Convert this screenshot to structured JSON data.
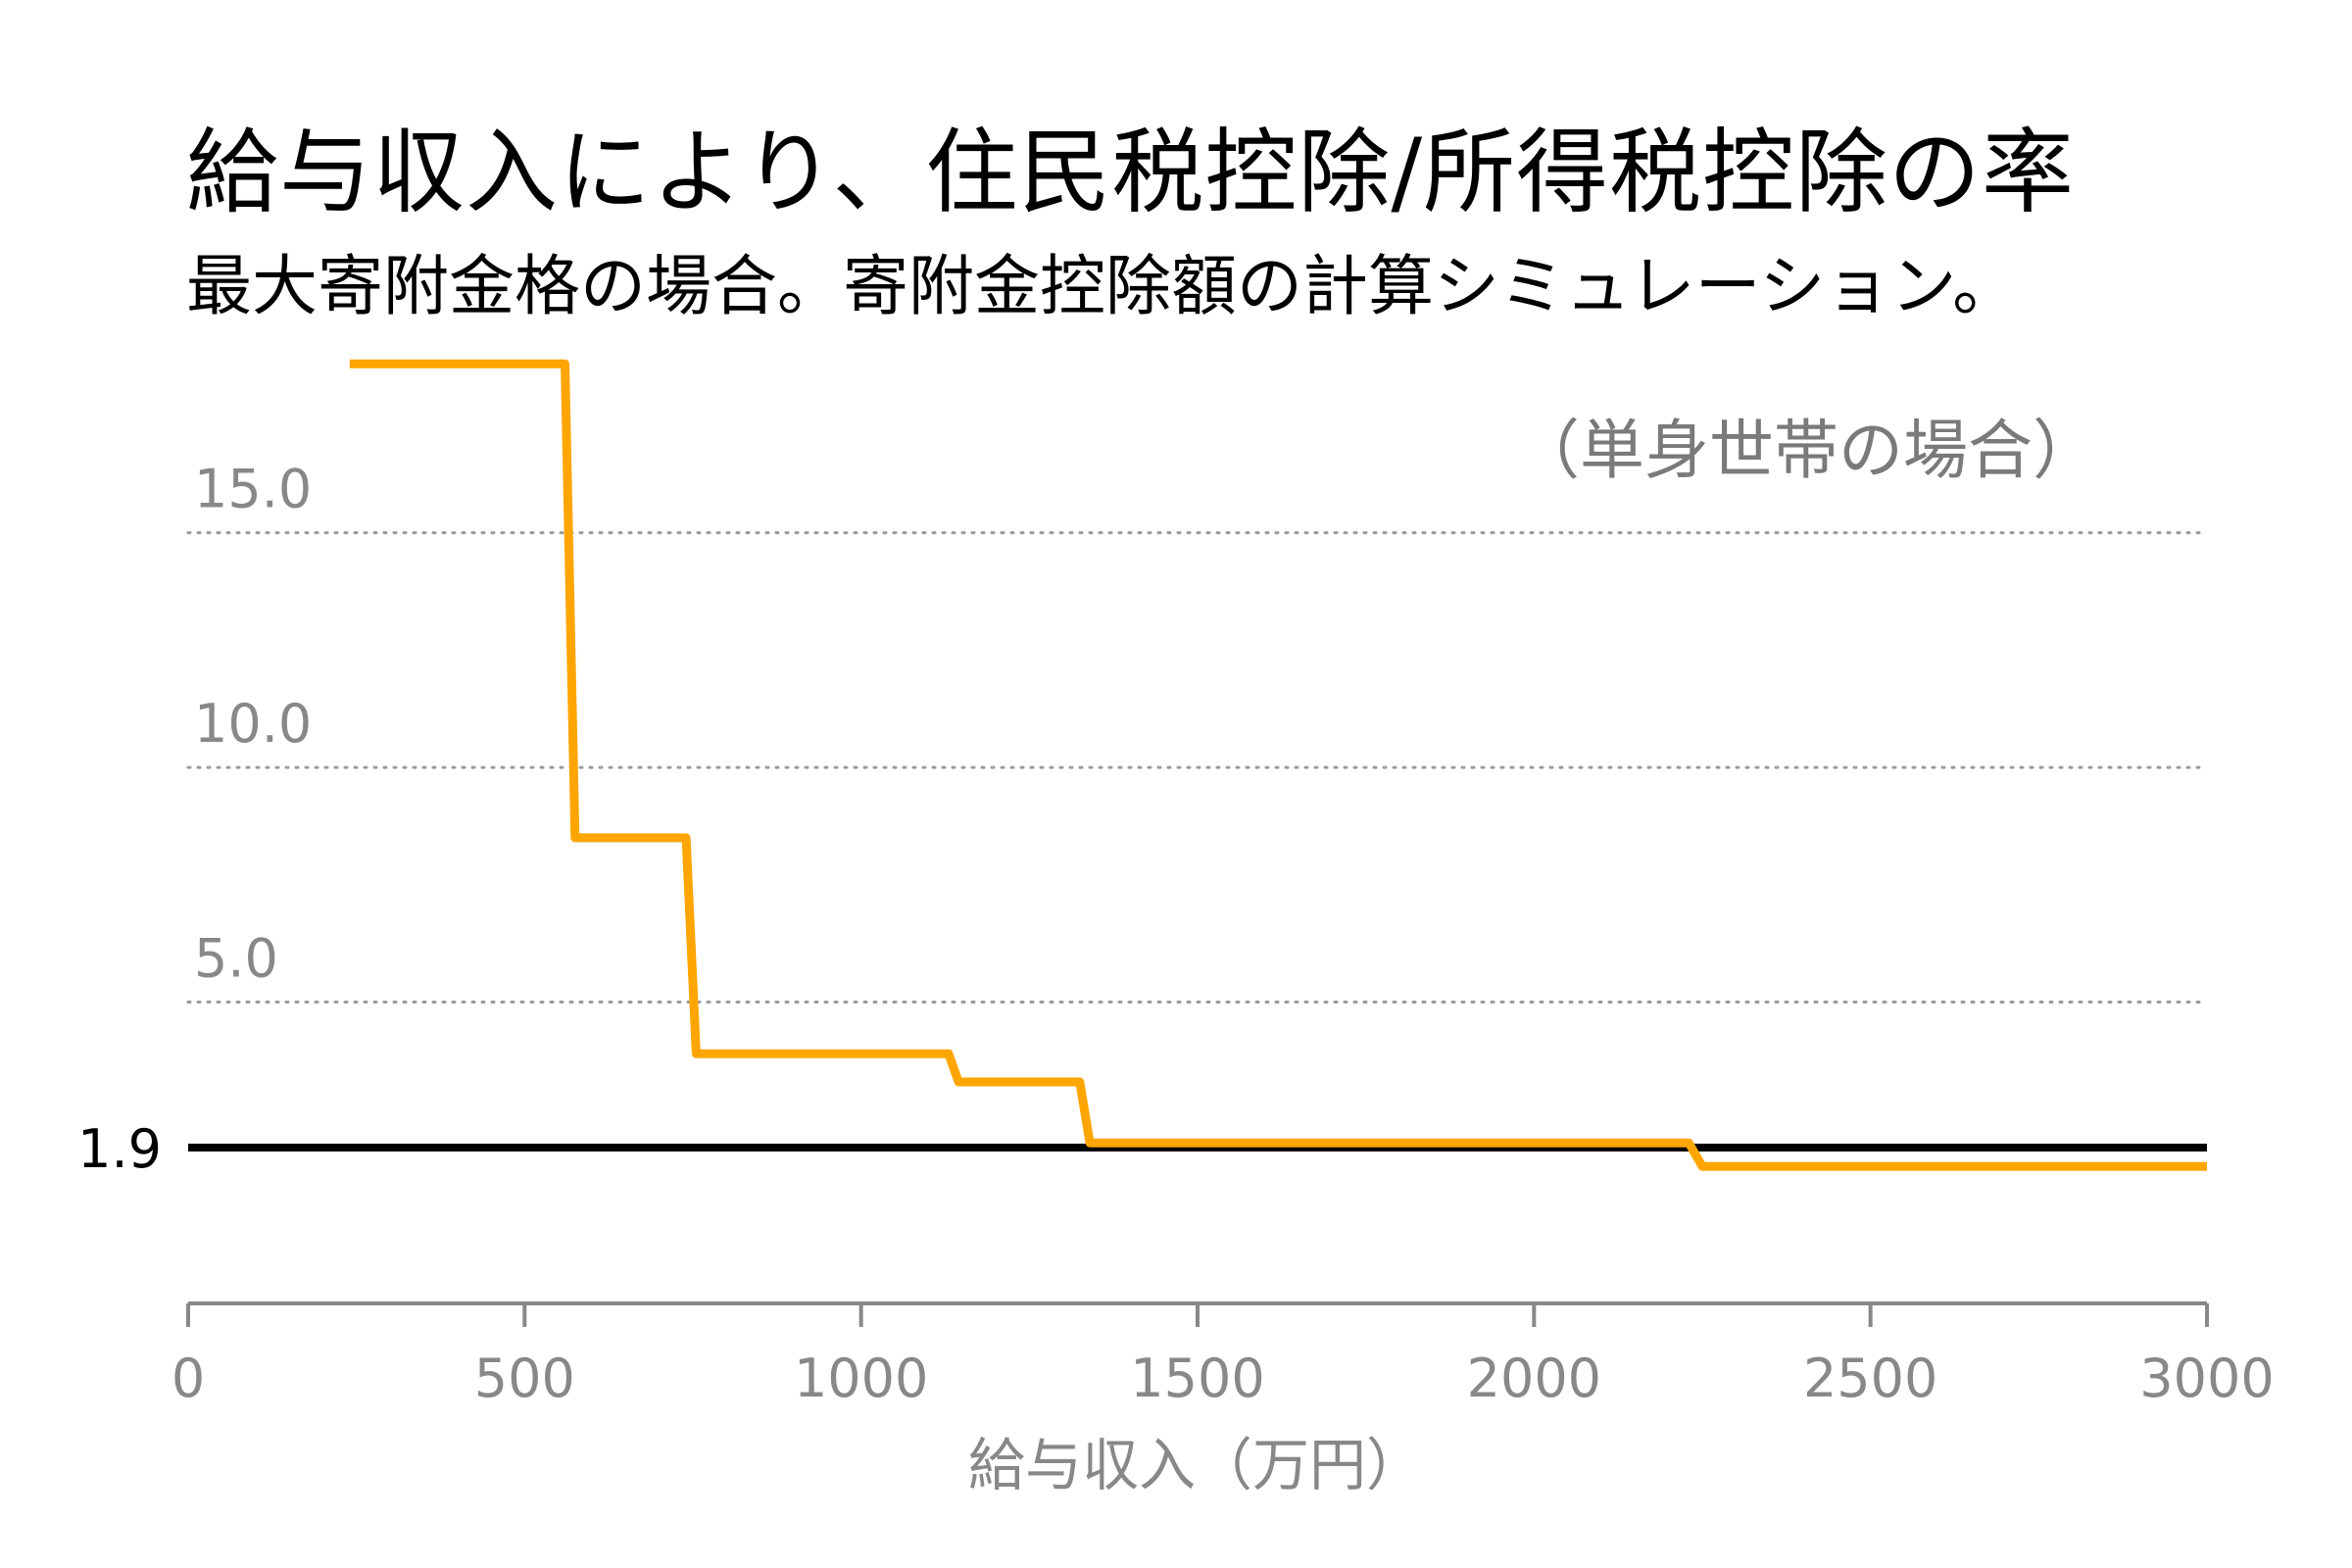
{
  "chart_data": {
    "type": "line",
    "title": "給与収入により、住民税控除/所得税控除の率",
    "subtitle": "最大寄附金格の場合。寄附金控除額の計算シミュレーション。",
    "annotation": "（単身世帯の場合）",
    "xlabel": "給与収入（万円）",
    "ylabel": "",
    "xlim": [
      0,
      3000
    ],
    "ylim": [
      0,
      18
    ],
    "x_ticks": [
      0,
      500,
      1000,
      1500,
      2000,
      2500,
      3000
    ],
    "x_tick_labels": [
      "0",
      "500",
      "1000",
      "1500",
      "2000",
      "2500",
      "3000"
    ],
    "y_ticks": [
      5,
      10,
      15
    ],
    "y_tick_labels": [
      "5.0",
      "10.0",
      "15.0"
    ],
    "grid": "horizontal-dotted",
    "series": [
      {
        "color": "#FFA500",
        "x": [
          240,
          560,
          575,
          740,
          755,
          1130,
          1145,
          1325,
          1340,
          2230,
          2250,
          3000
        ],
        "y": [
          18.6,
          18.6,
          8.5,
          8.5,
          3.9,
          3.9,
          3.3,
          3.3,
          2.0,
          2.0,
          1.5,
          1.5
        ]
      }
    ],
    "reference_line": {
      "y": 1.9,
      "label": "1.9",
      "color": "#000000"
    }
  }
}
